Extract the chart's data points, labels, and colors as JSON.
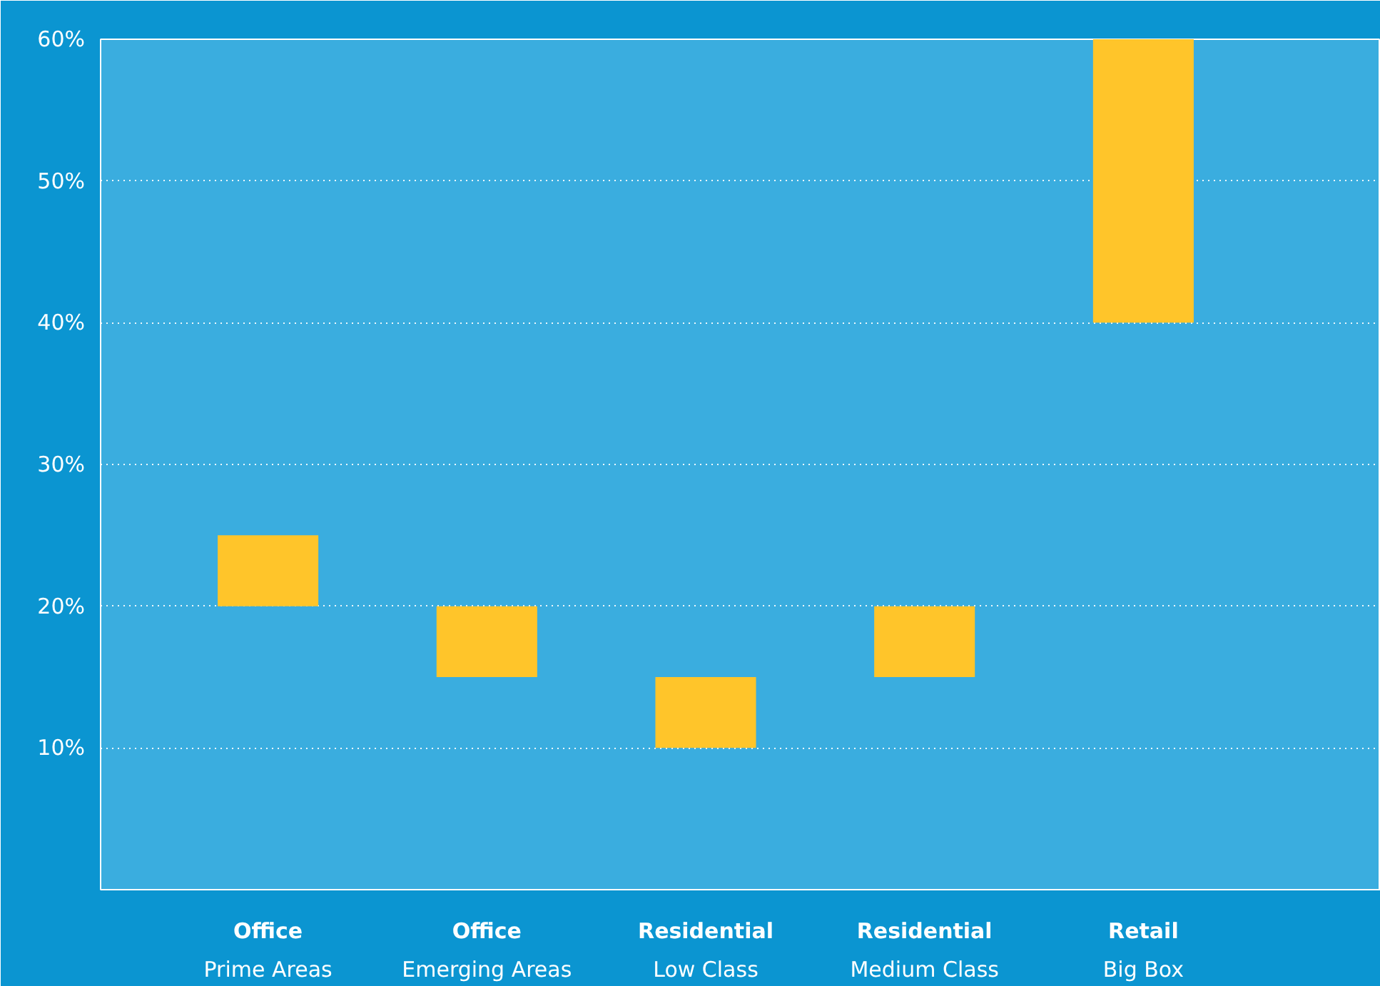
{
  "chart_data": {
    "type": "bar",
    "categories": [
      "Office\nPrime Areas",
      "Office\nEmerging Areas",
      "Residential\nLow Class",
      "Residential\nMedium Class",
      "Retail\nBig Box"
    ],
    "base": [
      20,
      15,
      10,
      15,
      40
    ],
    "values": [
      5,
      5,
      5,
      5,
      20
    ],
    "color": "#ffc52a",
    "ylim": [
      0,
      60
    ],
    "yticks": [
      {
        "value": 0,
        "label": null
      },
      {
        "value": 10,
        "label": "10%"
      },
      {
        "value": 20,
        "label": "20%"
      },
      {
        "value": 30,
        "label": "30%"
      },
      {
        "value": 40,
        "label": "40%"
      },
      {
        "value": 50,
        "label": "50%"
      },
      {
        "value": 60,
        "label": "60%"
      }
    ],
    "grid": "y"
  }
}
